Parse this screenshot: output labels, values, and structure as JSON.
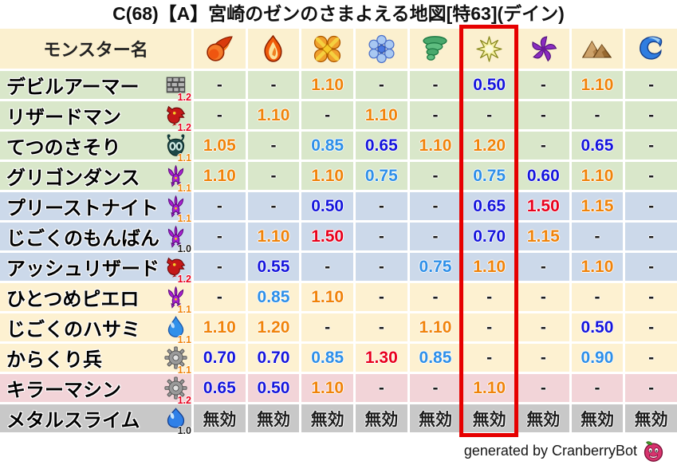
{
  "title": "C(68)【A】宮崎のゼンのさまよえる地図[特63](デイン)",
  "chart_data": {
    "type": "table",
    "title": "C(68)【A】宮崎のゼンのさまよえる地図[特63](デイン)",
    "name_column_label": "モンスター名",
    "element_columns": [
      {
        "icon": "fireball-icon"
      },
      {
        "icon": "flame-icon"
      },
      {
        "icon": "burst-icon"
      },
      {
        "icon": "snowflake-icon"
      },
      {
        "icon": "tornado-icon"
      },
      {
        "icon": "star-icon",
        "highlighted": true
      },
      {
        "icon": "pinwheel-icon"
      },
      {
        "icon": "mountain-icon"
      },
      {
        "icon": "wave-icon"
      }
    ],
    "rows": [
      {
        "monster": "デビルアーマー",
        "icon": "brick-wall-icon",
        "badge": "1.2",
        "badge_color": "red",
        "stripe": "green",
        "values": [
          {
            "t": "-",
            "c": "black"
          },
          {
            "t": "-",
            "c": "black"
          },
          {
            "t": "1.10",
            "c": "orange"
          },
          {
            "t": "-",
            "c": "black"
          },
          {
            "t": "-",
            "c": "black"
          },
          {
            "t": "0.50",
            "c": "deep_blue"
          },
          {
            "t": "-",
            "c": "black"
          },
          {
            "t": "1.10",
            "c": "orange"
          },
          {
            "t": "-",
            "c": "black"
          }
        ]
      },
      {
        "monster": "リザードマン",
        "icon": "dragon-icon",
        "badge": "1.2",
        "badge_color": "red",
        "stripe": "green",
        "values": [
          {
            "t": "-",
            "c": "black"
          },
          {
            "t": "1.10",
            "c": "orange"
          },
          {
            "t": "-",
            "c": "black"
          },
          {
            "t": "1.10",
            "c": "orange"
          },
          {
            "t": "-",
            "c": "black"
          },
          {
            "t": "-",
            "c": "black"
          },
          {
            "t": "-",
            "c": "black"
          },
          {
            "t": "-",
            "c": "black"
          },
          {
            "t": "-",
            "c": "black"
          }
        ]
      },
      {
        "monster": "てつのさそり",
        "icon": "bug-icon",
        "badge": "1.1",
        "badge_color": "orange",
        "stripe": "green",
        "values": [
          {
            "t": "1.05",
            "c": "orange"
          },
          {
            "t": "-",
            "c": "black"
          },
          {
            "t": "0.85",
            "c": "light_blue"
          },
          {
            "t": "0.65",
            "c": "deep_blue"
          },
          {
            "t": "1.10",
            "c": "orange"
          },
          {
            "t": "1.20",
            "c": "orange"
          },
          {
            "t": "-",
            "c": "black"
          },
          {
            "t": "0.65",
            "c": "deep_blue"
          },
          {
            "t": "-",
            "c": "black"
          }
        ]
      },
      {
        "monster": "グリゴンダンス",
        "icon": "demon-icon",
        "badge": "1.1",
        "badge_color": "orange",
        "stripe": "green",
        "values": [
          {
            "t": "1.10",
            "c": "orange"
          },
          {
            "t": "-",
            "c": "black"
          },
          {
            "t": "1.10",
            "c": "orange"
          },
          {
            "t": "0.75",
            "c": "light_blue"
          },
          {
            "t": "-",
            "c": "black"
          },
          {
            "t": "0.75",
            "c": "light_blue"
          },
          {
            "t": "0.60",
            "c": "deep_blue"
          },
          {
            "t": "1.10",
            "c": "orange"
          },
          {
            "t": "-",
            "c": "black"
          }
        ]
      },
      {
        "monster": "プリーストナイト",
        "icon": "demon-icon",
        "badge": "1.1",
        "badge_color": "orange",
        "stripe": "blue",
        "values": [
          {
            "t": "-",
            "c": "black"
          },
          {
            "t": "-",
            "c": "black"
          },
          {
            "t": "0.50",
            "c": "deep_blue"
          },
          {
            "t": "-",
            "c": "black"
          },
          {
            "t": "-",
            "c": "black"
          },
          {
            "t": "0.65",
            "c": "deep_blue"
          },
          {
            "t": "1.50",
            "c": "red"
          },
          {
            "t": "1.15",
            "c": "orange"
          },
          {
            "t": "-",
            "c": "black"
          }
        ]
      },
      {
        "monster": "じごくのもんばん",
        "icon": "demon-icon",
        "badge": "1.0",
        "badge_color": "black",
        "stripe": "blue",
        "values": [
          {
            "t": "-",
            "c": "black"
          },
          {
            "t": "1.10",
            "c": "orange"
          },
          {
            "t": "1.50",
            "c": "red"
          },
          {
            "t": "-",
            "c": "black"
          },
          {
            "t": "-",
            "c": "black"
          },
          {
            "t": "0.70",
            "c": "deep_blue"
          },
          {
            "t": "1.15",
            "c": "orange"
          },
          {
            "t": "-",
            "c": "black"
          },
          {
            "t": "-",
            "c": "black"
          }
        ]
      },
      {
        "monster": "アッシュリザード",
        "icon": "dragon-icon",
        "badge": "1.2",
        "badge_color": "red",
        "stripe": "blue",
        "values": [
          {
            "t": "-",
            "c": "black"
          },
          {
            "t": "0.55",
            "c": "deep_blue"
          },
          {
            "t": "-",
            "c": "black"
          },
          {
            "t": "-",
            "c": "black"
          },
          {
            "t": "0.75",
            "c": "light_blue"
          },
          {
            "t": "1.10",
            "c": "orange"
          },
          {
            "t": "-",
            "c": "black"
          },
          {
            "t": "1.10",
            "c": "orange"
          },
          {
            "t": "-",
            "c": "black"
          }
        ]
      },
      {
        "monster": "ひとつめピエロ",
        "icon": "demon-icon",
        "badge": "1.1",
        "badge_color": "orange",
        "stripe": "cream",
        "values": [
          {
            "t": "-",
            "c": "black"
          },
          {
            "t": "0.85",
            "c": "light_blue"
          },
          {
            "t": "1.10",
            "c": "orange"
          },
          {
            "t": "-",
            "c": "black"
          },
          {
            "t": "-",
            "c": "black"
          },
          {
            "t": "-",
            "c": "black"
          },
          {
            "t": "-",
            "c": "black"
          },
          {
            "t": "-",
            "c": "black"
          },
          {
            "t": "-",
            "c": "black"
          }
        ]
      },
      {
        "monster": "じごくのハサミ",
        "icon": "waterdrop-icon",
        "badge": "1.1",
        "badge_color": "orange",
        "stripe": "cream",
        "values": [
          {
            "t": "1.10",
            "c": "orange"
          },
          {
            "t": "1.20",
            "c": "orange"
          },
          {
            "t": "-",
            "c": "black"
          },
          {
            "t": "-",
            "c": "black"
          },
          {
            "t": "1.10",
            "c": "orange"
          },
          {
            "t": "-",
            "c": "black"
          },
          {
            "t": "-",
            "c": "black"
          },
          {
            "t": "0.50",
            "c": "deep_blue"
          },
          {
            "t": "-",
            "c": "black"
          }
        ]
      },
      {
        "monster": "からくり兵",
        "icon": "gear-icon",
        "badge": "1.1",
        "badge_color": "orange",
        "stripe": "cream",
        "values": [
          {
            "t": "0.70",
            "c": "deep_blue"
          },
          {
            "t": "0.70",
            "c": "deep_blue"
          },
          {
            "t": "0.85",
            "c": "light_blue"
          },
          {
            "t": "1.30",
            "c": "red"
          },
          {
            "t": "0.85",
            "c": "light_blue"
          },
          {
            "t": "-",
            "c": "black"
          },
          {
            "t": "-",
            "c": "black"
          },
          {
            "t": "0.90",
            "c": "light_blue"
          },
          {
            "t": "-",
            "c": "black"
          }
        ]
      },
      {
        "monster": "キラーマシン",
        "icon": "gear-icon",
        "badge": "1.2",
        "badge_color": "red",
        "stripe": "pink",
        "values": [
          {
            "t": "0.65",
            "c": "deep_blue"
          },
          {
            "t": "0.50",
            "c": "deep_blue"
          },
          {
            "t": "1.10",
            "c": "orange"
          },
          {
            "t": "-",
            "c": "black"
          },
          {
            "t": "-",
            "c": "black"
          },
          {
            "t": "1.10",
            "c": "orange"
          },
          {
            "t": "-",
            "c": "black"
          },
          {
            "t": "-",
            "c": "black"
          },
          {
            "t": "-",
            "c": "black"
          }
        ]
      },
      {
        "monster": "メタルスライム",
        "icon": "slime-icon",
        "badge": "1.0",
        "badge_color": "black",
        "stripe": "gray",
        "values": [
          {
            "t": "無効",
            "c": "black"
          },
          {
            "t": "無効",
            "c": "black"
          },
          {
            "t": "無効",
            "c": "black"
          },
          {
            "t": "無効",
            "c": "black"
          },
          {
            "t": "無効",
            "c": "black"
          },
          {
            "t": "無効",
            "c": "black"
          },
          {
            "t": "無効",
            "c": "black"
          },
          {
            "t": "無効",
            "c": "black"
          },
          {
            "t": "無効",
            "c": "black"
          }
        ]
      }
    ]
  },
  "palette": {
    "orange": "#f0830a",
    "red": "#e8001c",
    "deep_blue": "#1515dc",
    "light_blue": "#2e8fe8",
    "black": "#1c1c1c",
    "highlight_box": "#e60000"
  },
  "stripes": {
    "header": "#fbf0cf",
    "green": "#d9e7ca",
    "blue": "#ccd9ea",
    "cream": "#fdf1d1",
    "pink": "#f2d4d8",
    "gray": "#c8c8c8"
  },
  "footer": {
    "credit": "generated by CranberryBot",
    "icon": "cranberry-icon"
  }
}
